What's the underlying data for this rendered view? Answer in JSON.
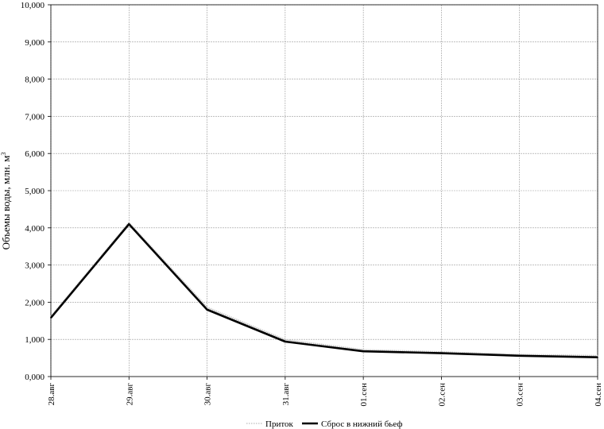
{
  "chart_data": {
    "type": "line",
    "title": "",
    "xlabel": "",
    "ylabel": "Объемы воды, млн. м",
    "ylabel_superscript": "3",
    "ylim": [
      0,
      10
    ],
    "yticks": [
      "0,000",
      "1,000",
      "2,000",
      "3,000",
      "4,000",
      "5,000",
      "6,000",
      "7,000",
      "8,000",
      "9,000",
      "10,000"
    ],
    "categories": [
      "28.авг",
      "29.авг",
      "30.авг",
      "31.авг",
      "01.сен",
      "02.сен",
      "03.сен",
      "04.сен"
    ],
    "grid": true,
    "legend_position": "bottom-center",
    "series": [
      {
        "name": "Приток",
        "values": [
          1.6,
          4.12,
          1.85,
          0.98,
          0.71,
          0.65,
          0.58,
          0.55
        ],
        "color": "#c8c8c8",
        "style": "dotted"
      },
      {
        "name": "Сброс в нижний бьеф",
        "values": [
          1.58,
          4.1,
          1.8,
          0.94,
          0.68,
          0.63,
          0.56,
          0.52
        ],
        "color": "#000000",
        "style": "solid"
      }
    ]
  }
}
